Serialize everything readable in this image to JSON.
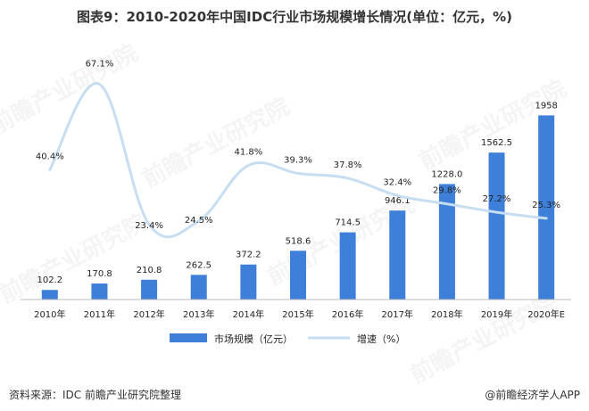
{
  "header": {
    "title": "图表9：2010-2020年中国IDC行业市场规模增长情况(单位：亿元，%)"
  },
  "chart_data": {
    "type": "bar+line",
    "title": "图表9：2010-2020年中国IDC行业市场规模增长情况(单位：亿元，%)",
    "categories": [
      "2010年",
      "2011年",
      "2012年",
      "2013年",
      "2014年",
      "2015年",
      "2016年",
      "2017年",
      "2018年",
      "2019年",
      "2020年E"
    ],
    "series": [
      {
        "name": "市场规模（亿元）",
        "type": "bar",
        "color": "#3d7fd9",
        "values": [
          102.2,
          170.8,
          210.8,
          262.5,
          372.2,
          518.6,
          714.5,
          946.1,
          1228.0,
          1562.5,
          1958
        ],
        "labels": [
          "102.2",
          "170.8",
          "210.8",
          "262.5",
          "372.2",
          "518.6",
          "714.5",
          "946.1",
          "1228.0",
          "1562.5",
          "1958"
        ]
      },
      {
        "name": "增速（%）",
        "type": "line",
        "color": "#c7def2",
        "values": [
          40.4,
          67.1,
          23.4,
          24.5,
          41.8,
          39.3,
          37.8,
          32.4,
          29.8,
          27.2,
          25.3
        ],
        "labels": [
          "40.4%",
          "67.1%",
          "23.4%",
          "24.5%",
          "41.8%",
          "39.3%",
          "37.8%",
          "32.4%",
          "29.8%",
          "27.2%",
          "25.3%"
        ]
      }
    ],
    "ylim_bar": [
      0,
      2000
    ],
    "ylim_line": [
      0,
      80
    ],
    "legend_position": "bottom-center"
  },
  "footer": {
    "source": "资料来源：IDC 前瞻产业研究院整理",
    "brand": "@前瞻经济学人APP"
  },
  "watermark": {
    "text": "前瞻产业研究院"
  }
}
